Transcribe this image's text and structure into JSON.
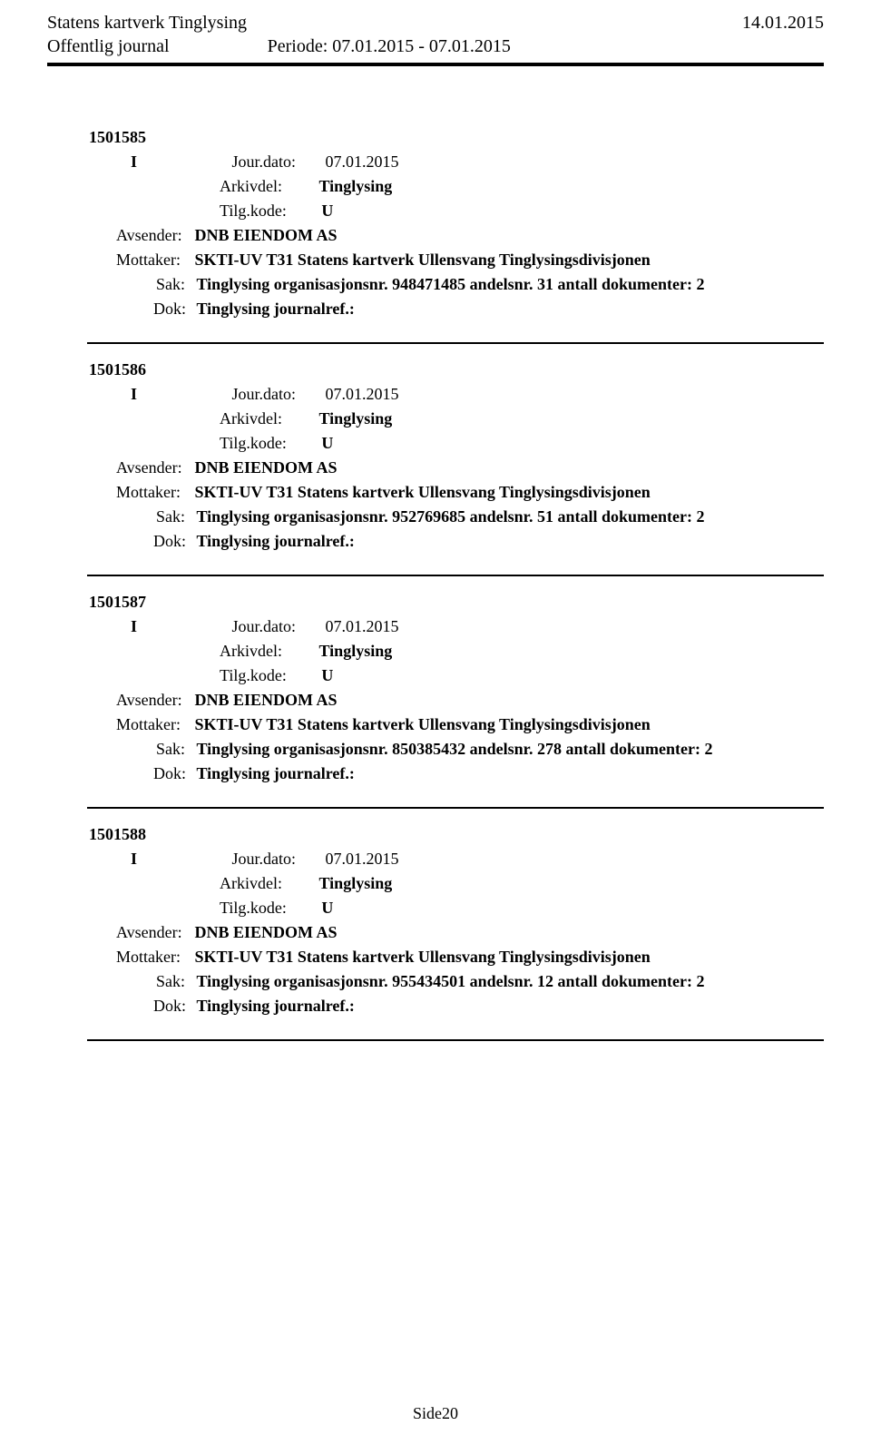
{
  "header": {
    "org": "Statens kartverk Tinglysing",
    "date": "14.01.2015",
    "journal_type": "Offentlig journal",
    "period_label": "Periode:",
    "period_value": "07.01.2015 - 07.01.2015"
  },
  "labels": {
    "jour_dato": "Jour.dato:",
    "arkivdel": "Arkivdel:",
    "tilg_kode": "Tilg.kode:",
    "avsender": "Avsender:",
    "mottaker": "Mottaker:",
    "sak": "Sak:",
    "dok": "Dok:"
  },
  "entries": [
    {
      "id": "1501585",
      "direction": "I",
      "jour_dato": "07.01.2015",
      "arkivdel": "Tinglysing",
      "tilg_kode": "U",
      "avsender": "DNB EIENDOM AS",
      "mottaker": "SKTI-UV T31 Statens kartverk Ullensvang Tinglysingsdivisjonen",
      "sak": "Tinglysing organisasjonsnr. 948471485 andelsnr. 31 antall dokumenter: 2",
      "dok": "Tinglysing journalref.:"
    },
    {
      "id": "1501586",
      "direction": "I",
      "jour_dato": "07.01.2015",
      "arkivdel": "Tinglysing",
      "tilg_kode": "U",
      "avsender": "DNB EIENDOM AS",
      "mottaker": "SKTI-UV T31 Statens kartverk Ullensvang Tinglysingsdivisjonen",
      "sak": "Tinglysing organisasjonsnr. 952769685 andelsnr. 51 antall dokumenter: 2",
      "dok": "Tinglysing journalref.:"
    },
    {
      "id": "1501587",
      "direction": "I",
      "jour_dato": "07.01.2015",
      "arkivdel": "Tinglysing",
      "tilg_kode": "U",
      "avsender": "DNB EIENDOM AS",
      "mottaker": "SKTI-UV T31 Statens kartverk Ullensvang Tinglysingsdivisjonen",
      "sak": "Tinglysing organisasjonsnr. 850385432 andelsnr. 278 antall dokumenter: 2",
      "dok": "Tinglysing journalref.:"
    },
    {
      "id": "1501588",
      "direction": "I",
      "jour_dato": "07.01.2015",
      "arkivdel": "Tinglysing",
      "tilg_kode": "U",
      "avsender": "DNB EIENDOM AS",
      "mottaker": "SKTI-UV T31 Statens kartverk Ullensvang Tinglysingsdivisjonen",
      "sak": "Tinglysing organisasjonsnr. 955434501 andelsnr. 12 antall dokumenter: 2",
      "dok": "Tinglysing journalref.:"
    }
  ],
  "page_number": "Side20",
  "style": {
    "background_color": "#ffffff",
    "text_color": "#000000",
    "font_family": "Times New Roman",
    "header_rule_width": 4,
    "entry_rule_width": 2
  }
}
